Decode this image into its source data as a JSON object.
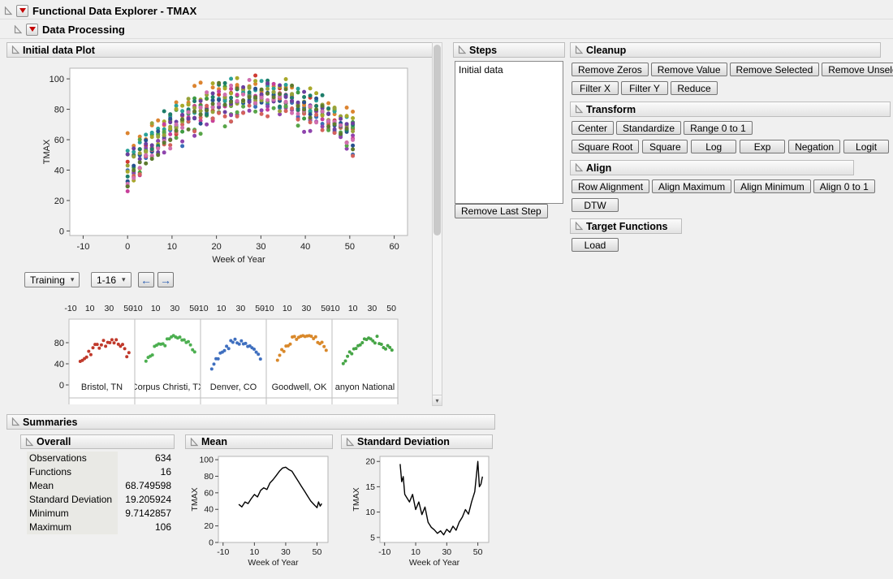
{
  "window": {
    "title": "Functional Data Explorer - TMAX"
  },
  "outline": {
    "data_processing": "Data Processing",
    "initial_plot": "Initial data Plot",
    "steps": "Steps",
    "cleanup": "Cleanup",
    "transform": "Transform",
    "align": "Align",
    "target_functions": "Target Functions",
    "summaries": "Summaries",
    "overall": "Overall",
    "mean": "Mean",
    "std_dev": "Standard Deviation"
  },
  "icons": {
    "combo_chevron": "▾",
    "left_arrow": "←",
    "right_arrow": "→",
    "scroll_down": "▾"
  },
  "controls": {
    "training": "Training",
    "page_range": "1-16"
  },
  "steps": {
    "items": [
      "Initial data"
    ],
    "remove_last": "Remove Last Step"
  },
  "cleanup": {
    "row1": [
      "Remove Zeros",
      "Remove Value",
      "Remove Selected",
      "Remove Unselected"
    ],
    "row2": [
      "Filter X",
      "Filter Y",
      "Reduce"
    ]
  },
  "transform": {
    "row1": [
      "Center",
      "Standardize",
      "Range 0 to 1"
    ],
    "row2": [
      "Square Root",
      "Square",
      "Log",
      "Exp",
      "Negation",
      "Logit"
    ]
  },
  "align": {
    "row1": [
      "Row Alignment",
      "Align Maximum",
      "Align Minimum",
      "Align 0 to 1"
    ],
    "row2": [
      "DTW"
    ]
  },
  "target": {
    "row1": [
      "Load"
    ]
  },
  "overall": {
    "rows": [
      {
        "label": "Observations",
        "value": "634"
      },
      {
        "label": "Functions",
        "value": "16"
      },
      {
        "label": "Mean",
        "value": "68.749598"
      },
      {
        "label": "Standard Deviation",
        "value": "19.205924"
      },
      {
        "label": "Minimum",
        "value": "9.7142857"
      },
      {
        "label": "Maximum",
        "value": "106"
      }
    ]
  },
  "chart_data": [
    {
      "id": "initial_scatter",
      "type": "scatter",
      "title": "Initial data Plot",
      "xlabel": "Week of Year",
      "ylabel": "TMAX",
      "xlim": [
        -13,
        63
      ],
      "ylim": [
        -3,
        107
      ],
      "xticks": [
        -10,
        0,
        10,
        20,
        30,
        40,
        50,
        60
      ],
      "yticks": [
        0,
        20,
        40,
        60,
        80,
        100
      ],
      "n_points_total": 634,
      "n_functions": 16,
      "value_range": [
        9.7142857,
        106
      ],
      "shape": "16 city TMAX-by-week curves, arc peaking near 90-100 at week 30, tails near 30-55",
      "series_colors": [
        "#cf3a32",
        "#3f9b42",
        "#3a6fb7",
        "#dc8430",
        "#2aa198",
        "#8e44ad",
        "#a8a82a",
        "#c73f9a",
        "#58a548",
        "#27518f",
        "#d4625c",
        "#1d7d6a",
        "#97a23a",
        "#6b3fa0",
        "#d06fae",
        "#5d7a2e"
      ],
      "gen": {
        "seed": 42,
        "week_min": 0,
        "week_max": 52,
        "week_step": 1.37,
        "peak_min": 80,
        "peak_max": 98,
        "drop_min": 35,
        "drop_max": 62,
        "noise_sd": 5
      }
    },
    {
      "id": "mean_line",
      "type": "line",
      "title": "Mean",
      "xlabel": "Week of Year",
      "ylabel": "TMAX",
      "xlim": [
        -13,
        57
      ],
      "ylim": [
        0,
        104
      ],
      "xticks": [
        -10,
        10,
        30,
        50
      ],
      "yticks": [
        0,
        20,
        40,
        60,
        80,
        100
      ],
      "color": "#000000",
      "x": [
        0,
        2,
        4,
        6,
        8,
        10,
        12,
        14,
        16,
        18,
        20,
        22,
        24,
        26,
        28,
        30,
        32,
        34,
        36,
        38,
        40,
        42,
        44,
        46,
        48,
        50,
        51,
        52,
        53
      ],
      "y": [
        46,
        43,
        49,
        47,
        53,
        58,
        55,
        63,
        66,
        64,
        72,
        76,
        81,
        86,
        90,
        91,
        88,
        86,
        80,
        74,
        68,
        62,
        56,
        50,
        46,
        42,
        49,
        44,
        47
      ]
    },
    {
      "id": "std_line",
      "type": "line",
      "title": "Standard Deviation",
      "xlabel": "Week of Year",
      "ylabel": "TMAX",
      "xlim": [
        -13,
        57
      ],
      "ylim": [
        4,
        21
      ],
      "xticks": [
        -10,
        10,
        30,
        50
      ],
      "yticks": [
        5,
        10,
        15,
        20
      ],
      "color": "#000000",
      "x": [
        0,
        1,
        2,
        3,
        4,
        6,
        8,
        10,
        12,
        14,
        16,
        18,
        20,
        22,
        24,
        26,
        28,
        30,
        32,
        34,
        36,
        38,
        40,
        42,
        44,
        46,
        48,
        50,
        51,
        52,
        53
      ],
      "y": [
        19.5,
        16,
        17,
        13.5,
        13,
        12,
        13.5,
        10.5,
        12,
        9.5,
        11,
        8,
        7,
        6.5,
        5.8,
        6.3,
        5.5,
        6.6,
        6,
        7.2,
        6.4,
        8,
        9,
        10.5,
        9.6,
        12,
        14,
        20,
        15,
        15.5,
        17
      ]
    },
    {
      "id": "mini_grid",
      "type": "scatter-grid",
      "cells": [
        {
          "label": "Bristol, TN",
          "color": "#c0392b"
        },
        {
          "label": "Corpus Christi, TX",
          "color": "#4caf50"
        },
        {
          "label": "Denver, CO",
          "color": "#3f6fbf"
        },
        {
          "label": "Goodwell, OK",
          "color": "#d9882a"
        },
        {
          "label": "anyon National",
          "color": "#46a546"
        }
      ],
      "top_axis_labels": [
        "-10",
        "10",
        "30",
        "50"
      ],
      "yticks": [
        0,
        40,
        80
      ],
      "gen": {
        "seed": 7,
        "week_step": 2.2,
        "noise_sd": 4
      }
    }
  ]
}
